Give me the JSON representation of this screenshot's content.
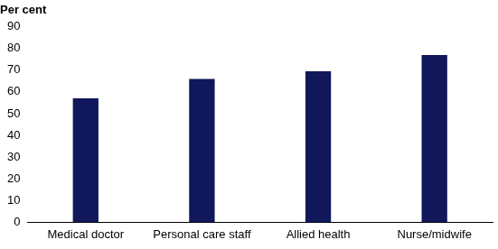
{
  "chart_data": {
    "type": "bar",
    "ylabel": "Per cent",
    "categories": [
      "Medical doctor",
      "Personal care staff",
      "Allied health",
      "Nurse/midwife"
    ],
    "values": [
      57,
      66,
      69.5,
      77
    ],
    "color": "#10175a",
    "ylim": [
      0,
      90
    ],
    "yticks": [
      0,
      10,
      20,
      30,
      40,
      50,
      60,
      70,
      80,
      90
    ],
    "grid": false
  }
}
